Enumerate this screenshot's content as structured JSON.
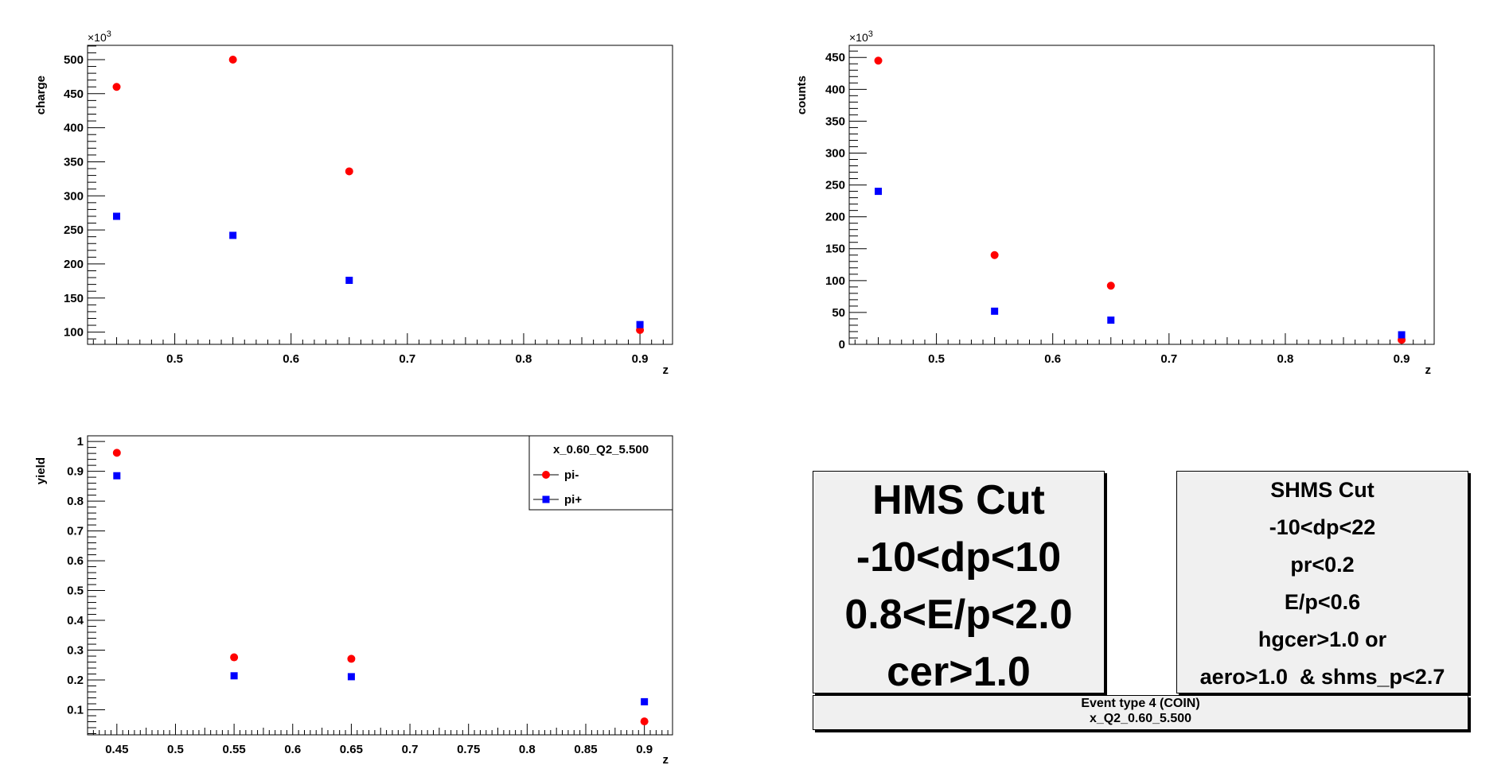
{
  "chart_data": [
    {
      "type": "scatter",
      "title": "",
      "xlabel": "z",
      "ylabel": "charge",
      "y_exponent": "×10",
      "y_exponent_power": "3",
      "xlim": [
        0.425,
        0.928
      ],
      "ylim": [
        82,
        521
      ],
      "x_ticks": [
        0.5,
        0.6,
        0.7,
        0.8,
        0.9
      ],
      "x_tick_labels": [
        "0.5",
        "0.6",
        "0.7",
        "0.8",
        "0.9"
      ],
      "y_ticks": [
        100,
        150,
        200,
        250,
        300,
        350,
        400,
        450,
        500
      ],
      "y_tick_labels": [
        "100",
        "150",
        "200",
        "250",
        "300",
        "350",
        "400",
        "450",
        "500"
      ],
      "series": [
        {
          "marker": "circle",
          "color": "#ff0000",
          "x": [
            0.45,
            0.55,
            0.65,
            0.9
          ],
          "y": [
            460,
            500,
            336,
            103
          ]
        },
        {
          "marker": "square",
          "color": "#0000ff",
          "x": [
            0.45,
            0.55,
            0.65,
            0.9
          ],
          "y": [
            270,
            242,
            176,
            111
          ]
        }
      ]
    },
    {
      "type": "scatter",
      "title": "",
      "xlabel": "z",
      "ylabel": "counts",
      "y_exponent": "×10",
      "y_exponent_power": "3",
      "xlim": [
        0.425,
        0.928
      ],
      "ylim": [
        0,
        469
      ],
      "x_ticks": [
        0.5,
        0.6,
        0.7,
        0.8,
        0.9
      ],
      "x_tick_labels": [
        "0.5",
        "0.6",
        "0.7",
        "0.8",
        "0.9"
      ],
      "y_ticks": [
        0,
        50,
        100,
        150,
        200,
        250,
        300,
        350,
        400,
        450
      ],
      "y_tick_labels": [
        "0",
        "50",
        "100",
        "150",
        "200",
        "250",
        "300",
        "350",
        "400",
        "450"
      ],
      "series": [
        {
          "marker": "circle",
          "color": "#ff0000",
          "x": [
            0.45,
            0.55,
            0.65,
            0.9
          ],
          "y": [
            445,
            140,
            92,
            7
          ]
        },
        {
          "marker": "square",
          "color": "#0000ff",
          "x": [
            0.45,
            0.55,
            0.65,
            0.9
          ],
          "y": [
            240,
            52,
            38,
            15
          ]
        }
      ]
    },
    {
      "type": "scatter",
      "title": "",
      "xlabel": "z",
      "ylabel": "yield",
      "xlim": [
        0.425,
        0.924
      ],
      "ylim": [
        0.016,
        1.019
      ],
      "x_ticks": [
        0.45,
        0.5,
        0.55,
        0.6,
        0.65,
        0.7,
        0.75,
        0.8,
        0.85,
        0.9
      ],
      "x_tick_labels": [
        "0.45",
        "0.5",
        "0.55",
        "0.6",
        "0.65",
        "0.7",
        "0.75",
        "0.8",
        "0.85",
        "0.9"
      ],
      "y_ticks": [
        0.1,
        0.2,
        0.3,
        0.4,
        0.5,
        0.6,
        0.7,
        0.8,
        0.9,
        1
      ],
      "y_tick_labels": [
        "0.1",
        "0.2",
        "0.3",
        "0.4",
        "0.5",
        "0.6",
        "0.7",
        "0.8",
        "0.9",
        "1"
      ],
      "legend": {
        "title": "x_0.60_Q2_5.500",
        "placement": "top-right",
        "entries": [
          "pi-",
          "pi+"
        ]
      },
      "series": [
        {
          "name": "pi-",
          "marker": "circle",
          "color": "#ff0000",
          "x": [
            0.45,
            0.55,
            0.65,
            0.9
          ],
          "y": [
            0.962,
            0.276,
            0.271,
            0.061
          ]
        },
        {
          "name": "pi+",
          "marker": "square",
          "color": "#0000ff",
          "x": [
            0.45,
            0.55,
            0.65,
            0.9
          ],
          "y": [
            0.885,
            0.214,
            0.211,
            0.127
          ]
        }
      ]
    }
  ],
  "hms_box": {
    "lines": [
      "HMS Cut",
      "-10<dp<10",
      "0.8<E/p<2.0",
      "cer>1.0"
    ]
  },
  "shms_box": {
    "lines": [
      "SHMS Cut",
      "-10<dp<22",
      "pr<0.2",
      "E/p<0.6",
      "hgcer>1.0 or",
      "aero>1.0  & shms_p<2.7"
    ]
  },
  "event_box": {
    "lines": [
      "Event type 4 (COIN)",
      "x_Q2_0.60_5.500"
    ]
  }
}
